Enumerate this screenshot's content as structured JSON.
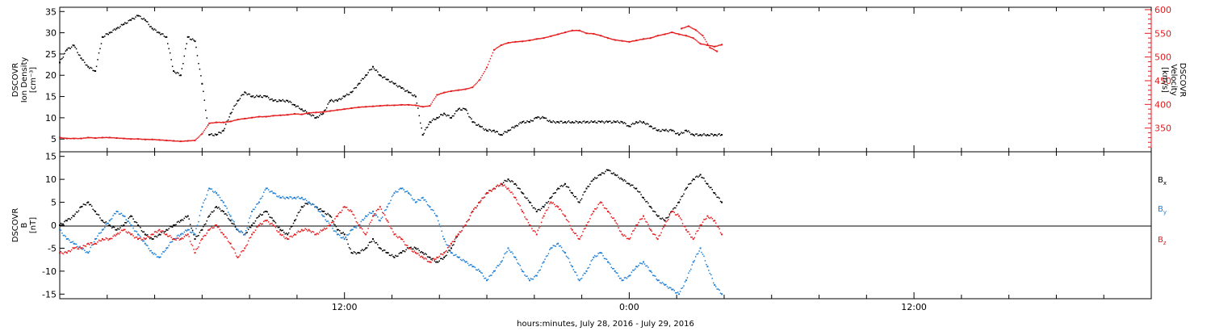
{
  "xaxis": {
    "label": "hours:minutes, July 28, 2016 - July 29, 2016",
    "ticks": [
      "12:00",
      "0:00",
      "12:00"
    ],
    "range_hours": [
      0,
      46
    ],
    "label_positions_hours": [
      12,
      24,
      36
    ]
  },
  "colors": {
    "black": "#000000",
    "red": "#e41a1c",
    "blue": "#1c7fd6"
  },
  "chart_data": [
    {
      "type": "scatter",
      "panel": "top",
      "ylabel_left": [
        "DSCOVR",
        "Ion Density",
        "[cm⁻³]"
      ],
      "ylabel_right": [
        "DSCOVR",
        "Velocity",
        "[km/s]"
      ],
      "ylim_left": [
        2,
        36
      ],
      "ylim_right": [
        300,
        605
      ],
      "yticks_left": [
        5,
        10,
        15,
        20,
        25,
        30,
        35
      ],
      "yticks_right": [
        350,
        400,
        450,
        500,
        550,
        600
      ],
      "series": [
        {
          "name": "",
          "axis": "left",
          "color": "#000000",
          "x": [
            0.0,
            0.3,
            0.6,
            0.9,
            1.2,
            1.5,
            1.8,
            2.1,
            2.4,
            2.7,
            3.0,
            3.3,
            3.6,
            3.9,
            4.2,
            4.5,
            4.8,
            5.1,
            5.4,
            5.7,
            6.0,
            6.3,
            6.6,
            6.9,
            7.2,
            7.5,
            7.8,
            8.1,
            8.4,
            8.7,
            9.0,
            9.3,
            9.6,
            9.9,
            10.2,
            10.5,
            10.8,
            11.1,
            11.4,
            11.7,
            12.0,
            12.3,
            12.6,
            12.9,
            13.2,
            13.5,
            13.8,
            14.1,
            14.4,
            14.7,
            15.0,
            15.3,
            15.6,
            15.9,
            16.2,
            16.5,
            16.8,
            17.1,
            17.4,
            17.7,
            18.0,
            18.3,
            18.6,
            18.9,
            19.2,
            19.5,
            19.8,
            20.1,
            20.4,
            20.7,
            21.0,
            21.3,
            21.6,
            21.9,
            22.2,
            22.5,
            22.8,
            23.1,
            23.4,
            23.7,
            24.0,
            24.3,
            24.6,
            24.9,
            25.2,
            25.5,
            25.8,
            26.1,
            26.4,
            26.7,
            27.0,
            27.3,
            27.6,
            27.9
          ],
          "y": [
            23,
            26,
            27,
            24,
            22,
            21,
            29,
            30,
            31,
            32,
            33,
            34,
            33,
            31,
            30,
            29,
            21,
            20,
            29,
            28,
            18,
            6,
            6,
            7,
            11,
            14,
            16,
            15,
            15,
            15,
            14,
            14,
            14,
            13,
            12,
            11,
            10,
            11,
            14,
            14,
            15,
            16,
            18,
            20,
            22,
            20,
            19,
            18,
            17,
            16,
            15,
            6,
            9,
            10,
            11,
            10,
            12,
            12,
            9,
            8,
            7,
            7,
            6,
            7,
            8,
            9,
            9,
            10,
            10,
            9,
            9,
            9,
            9,
            9,
            9,
            9,
            9,
            9,
            9,
            9,
            8,
            9,
            9,
            8,
            7,
            7,
            7,
            6,
            7,
            6,
            6,
            6,
            6,
            6
          ]
        },
        {
          "name": "",
          "axis": "right",
          "color": "#e41a1c",
          "x": [
            0.0,
            0.3,
            0.6,
            0.9,
            1.2,
            1.5,
            1.8,
            2.1,
            2.4,
            2.7,
            3.0,
            3.3,
            3.6,
            3.9,
            4.2,
            4.5,
            4.8,
            5.1,
            5.4,
            5.7,
            6.0,
            6.3,
            6.6,
            6.9,
            7.2,
            7.5,
            7.8,
            8.1,
            8.4,
            8.7,
            9.0,
            9.3,
            9.6,
            9.9,
            10.2,
            10.5,
            10.8,
            11.1,
            11.4,
            11.7,
            12.0,
            12.3,
            12.6,
            12.9,
            13.2,
            13.5,
            13.8,
            14.1,
            14.4,
            14.7,
            15.0,
            15.3,
            15.6,
            15.9,
            16.2,
            16.5,
            16.8,
            17.1,
            17.4,
            17.7,
            18.0,
            18.3,
            18.6,
            18.9,
            19.2,
            19.5,
            19.8,
            20.1,
            20.4,
            20.7,
            21.0,
            21.3,
            21.6,
            21.9,
            22.2,
            22.5,
            22.8,
            23.1,
            23.4,
            23.7,
            24.0,
            24.3,
            24.6,
            24.9,
            25.2,
            25.5,
            25.8,
            26.1,
            26.4,
            26.7,
            27.0,
            27.3,
            27.6,
            27.9
          ],
          "y": [
            330,
            328,
            328,
            328,
            330,
            329,
            330,
            330,
            329,
            328,
            327,
            327,
            326,
            326,
            325,
            324,
            323,
            322,
            323,
            324,
            338,
            360,
            362,
            362,
            364,
            368,
            370,
            372,
            374,
            374,
            376,
            377,
            378,
            380,
            379,
            382,
            383,
            384,
            386,
            388,
            390,
            392,
            394,
            395,
            396,
            397,
            398,
            398,
            399,
            399,
            398,
            395,
            397,
            420,
            425,
            428,
            430,
            432,
            436,
            452,
            478,
            515,
            525,
            530,
            532,
            533,
            535,
            538,
            540,
            544,
            548,
            552,
            556,
            556,
            550,
            549,
            545,
            540,
            536,
            534,
            532,
            535,
            538,
            540,
            545,
            548,
            552,
            548,
            545,
            540,
            528,
            525,
            522,
            526
          ]
        },
        {
          "name": "",
          "axis": "right",
          "color": "#e41a1c",
          "x": [
            26.2,
            26.5,
            26.8,
            27.1,
            27.4,
            27.7
          ],
          "y": [
            560,
            565,
            557,
            545,
            520,
            512
          ]
        }
      ]
    },
    {
      "type": "scatter",
      "panel": "bottom",
      "ylabel_left": [
        "DSCOVR",
        "B",
        "[nT]"
      ],
      "ylim": [
        -16,
        16
      ],
      "yticks": [
        -15,
        -10,
        -5,
        0,
        5,
        10,
        15
      ],
      "legend_position": "right",
      "series": [
        {
          "name": "Bx",
          "color": "#000000",
          "x": [
            0.0,
            0.3,
            0.6,
            0.9,
            1.2,
            1.5,
            1.8,
            2.1,
            2.4,
            2.7,
            3.0,
            3.3,
            3.6,
            3.9,
            4.2,
            4.5,
            4.8,
            5.1,
            5.4,
            5.7,
            6.0,
            6.3,
            6.6,
            6.9,
            7.2,
            7.5,
            7.8,
            8.1,
            8.4,
            8.7,
            9.0,
            9.3,
            9.6,
            9.9,
            10.2,
            10.5,
            10.8,
            11.1,
            11.4,
            11.7,
            12.0,
            12.3,
            12.6,
            12.9,
            13.2,
            13.5,
            13.8,
            14.1,
            14.4,
            14.7,
            15.0,
            15.3,
            15.6,
            15.9,
            16.2,
            16.5,
            16.8,
            17.1,
            17.4,
            17.7,
            18.0,
            18.3,
            18.6,
            18.9,
            19.2,
            19.5,
            19.8,
            20.1,
            20.4,
            20.7,
            21.0,
            21.3,
            21.6,
            21.9,
            22.2,
            22.5,
            22.8,
            23.1,
            23.4,
            23.7,
            24.0,
            24.3,
            24.6,
            24.9,
            25.2,
            25.5,
            25.8,
            26.1,
            26.4,
            26.7,
            27.0,
            27.3,
            27.6,
            27.9
          ],
          "y": [
            0,
            1,
            2,
            4,
            5,
            3,
            1,
            0,
            -1,
            0,
            2,
            0,
            -2,
            -3,
            -2,
            -1,
            0,
            1,
            2,
            -3,
            -1,
            2,
            4,
            3,
            1,
            -1,
            -2,
            0,
            2,
            3,
            1,
            -1,
            -2,
            1,
            4,
            5,
            4,
            3,
            2,
            -1,
            -2,
            -6,
            -6,
            -5,
            -3,
            -5,
            -6,
            -7,
            -6,
            -5,
            -5,
            -6,
            -7,
            -8,
            -7,
            -5,
            -2,
            0,
            3,
            5,
            7,
            8,
            9,
            10,
            9,
            7,
            5,
            3,
            4,
            6,
            8,
            9,
            7,
            5,
            8,
            10,
            11,
            12,
            11,
            10,
            9,
            8,
            6,
            4,
            2,
            1,
            3,
            5,
            8,
            10,
            11,
            9,
            7,
            5
          ]
        },
        {
          "name": "By",
          "color": "#1c7fd6",
          "x": [
            0.0,
            0.3,
            0.6,
            0.9,
            1.2,
            1.5,
            1.8,
            2.1,
            2.4,
            2.7,
            3.0,
            3.3,
            3.6,
            3.9,
            4.2,
            4.5,
            4.8,
            5.1,
            5.4,
            5.7,
            6.0,
            6.3,
            6.6,
            6.9,
            7.2,
            7.5,
            7.8,
            8.1,
            8.4,
            8.7,
            9.0,
            9.3,
            9.6,
            9.9,
            10.2,
            10.5,
            10.8,
            11.1,
            11.4,
            11.7,
            12.0,
            12.3,
            12.6,
            12.9,
            13.2,
            13.5,
            13.8,
            14.1,
            14.4,
            14.7,
            15.0,
            15.3,
            15.6,
            15.9,
            16.2,
            16.5,
            16.8,
            17.1,
            17.4,
            17.7,
            18.0,
            18.3,
            18.6,
            18.9,
            19.2,
            19.5,
            19.8,
            20.1,
            20.4,
            20.7,
            21.0,
            21.3,
            21.6,
            21.9,
            22.2,
            22.5,
            22.8,
            23.1,
            23.4,
            23.7,
            24.0,
            24.3,
            24.6,
            24.9,
            25.2,
            25.5,
            25.8,
            26.1,
            26.4,
            26.7,
            27.0,
            27.3,
            27.6,
            27.9
          ],
          "y": [
            -1,
            -3,
            -4,
            -5,
            -6,
            -3,
            -1,
            1,
            3,
            2,
            0,
            -2,
            -4,
            -6,
            -7,
            -5,
            -3,
            -2,
            -1,
            -2,
            4,
            8,
            7,
            5,
            2,
            -1,
            -2,
            3,
            5,
            8,
            7,
            6,
            6,
            6,
            6,
            5,
            4,
            2,
            0,
            -2,
            -3,
            -1,
            0,
            2,
            3,
            1,
            4,
            7,
            8,
            7,
            5,
            6,
            4,
            2,
            -3,
            -6,
            -7,
            -8,
            -9,
            -10,
            -12,
            -10,
            -8,
            -5,
            -7,
            -10,
            -12,
            -11,
            -8,
            -5,
            -4,
            -6,
            -9,
            -12,
            -10,
            -7,
            -6,
            -8,
            -10,
            -12,
            -11,
            -9,
            -8,
            -10,
            -12,
            -13,
            -14,
            -15,
            -12,
            -8,
            -5,
            -9,
            -13,
            -15
          ]
        },
        {
          "name": "Bz",
          "color": "#e41a1c",
          "x": [
            0.0,
            0.3,
            0.6,
            0.9,
            1.2,
            1.5,
            1.8,
            2.1,
            2.4,
            2.7,
            3.0,
            3.3,
            3.6,
            3.9,
            4.2,
            4.5,
            4.8,
            5.1,
            5.4,
            5.7,
            6.0,
            6.3,
            6.6,
            6.9,
            7.2,
            7.5,
            7.8,
            8.1,
            8.4,
            8.7,
            9.0,
            9.3,
            9.6,
            9.9,
            10.2,
            10.5,
            10.8,
            11.1,
            11.4,
            11.7,
            12.0,
            12.3,
            12.6,
            12.9,
            13.2,
            13.5,
            13.8,
            14.1,
            14.4,
            14.7,
            15.0,
            15.3,
            15.6,
            15.9,
            16.2,
            16.5,
            16.8,
            17.1,
            17.4,
            17.7,
            18.0,
            18.3,
            18.6,
            18.9,
            19.2,
            19.5,
            19.8,
            20.1,
            20.4,
            20.7,
            21.0,
            21.3,
            21.6,
            21.9,
            22.2,
            22.5,
            22.8,
            23.1,
            23.4,
            23.7,
            24.0,
            24.3,
            24.6,
            24.9,
            25.2,
            25.5,
            25.8,
            26.1,
            26.4,
            26.7,
            27.0,
            27.3,
            27.6,
            27.9
          ],
          "y": [
            -6,
            -6,
            -5,
            -5,
            -4,
            -4,
            -3,
            -3,
            -2,
            -1,
            -2,
            -3,
            -3,
            -2,
            -1,
            -2,
            -3,
            -3,
            -2,
            -6,
            -3,
            -1,
            0,
            -2,
            -4,
            -7,
            -5,
            -2,
            0,
            1,
            0,
            -2,
            -3,
            -2,
            -1,
            -1,
            -2,
            -1,
            0,
            2,
            4,
            3,
            0,
            -2,
            2,
            4,
            1,
            -2,
            -3,
            -5,
            -6,
            -7,
            -8,
            -7,
            -6,
            -4,
            -2,
            0,
            3,
            5,
            7,
            8,
            9,
            8,
            6,
            3,
            0,
            -2,
            2,
            5,
            4,
            2,
            -1,
            -3,
            0,
            3,
            5,
            3,
            1,
            -2,
            -3,
            0,
            2,
            -1,
            -3,
            0,
            3,
            2,
            -1,
            -3,
            0,
            2,
            1,
            -2
          ]
        }
      ]
    }
  ]
}
